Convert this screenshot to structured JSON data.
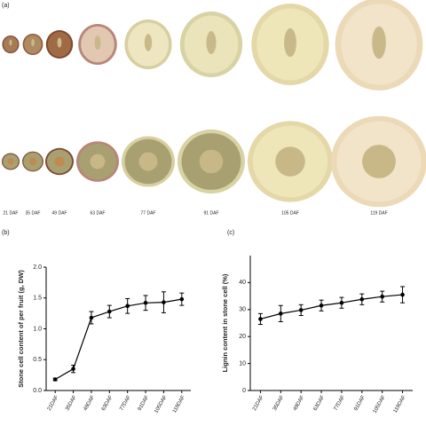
{
  "panel_a": {
    "label": "(a)",
    "stages": [
      "21 DAF",
      "35 DAF",
      "49 DAF",
      "63 DAF",
      "77 DAF",
      "91 DAF",
      "105 DAF",
      "119 DAF"
    ]
  },
  "chart_data": [
    {
      "type": "line",
      "label": "(b)",
      "ylabel": "Stone cell content of per fruit (g, DW)",
      "categories": [
        "21DAF",
        "35DAF",
        "49DAF",
        "63DAF",
        "77DAF",
        "91DAF",
        "105DAF",
        "119DAF"
      ],
      "series": [
        {
          "color": "#000000",
          "values": [
            0.18,
            0.35,
            1.18,
            1.28,
            1.37,
            1.42,
            1.43,
            1.48
          ],
          "errors": [
            0.02,
            0.06,
            0.1,
            0.1,
            0.12,
            0.12,
            0.17,
            0.1
          ]
        }
      ],
      "ylim": [
        0,
        2.0
      ],
      "yticks": [
        {
          "value": 0,
          "label": "0.0"
        },
        0.5,
        {
          "value": 1,
          "label": "1.0"
        },
        1.5,
        {
          "value": 2,
          "label": "2.0"
        }
      ]
    },
    {
      "type": "line",
      "label": "(c)",
      "ylabel": "Lignin content in stone cell (%)",
      "categories": [
        "21DAF",
        "35DAF",
        "49DAF",
        "63DAF",
        "77DAF",
        "91DAF",
        "105DAF",
        "119DAF"
      ],
      "series": [
        {
          "color": "#000000",
          "values": [
            26.5,
            28.5,
            29.8,
            31.5,
            32.5,
            33.8,
            34.8,
            35.5
          ],
          "errors": [
            2,
            3,
            2,
            2,
            2,
            2,
            2,
            3
          ]
        }
      ],
      "ylim": [
        0,
        50
      ],
      "yticks": [
        0,
        10,
        20,
        30,
        40
      ]
    }
  ]
}
